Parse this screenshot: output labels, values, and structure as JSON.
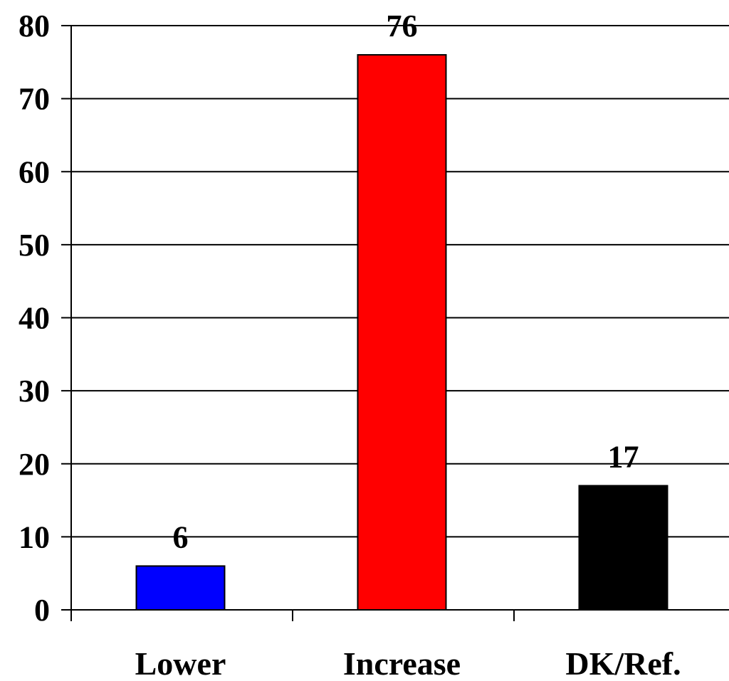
{
  "chart_data": {
    "type": "bar",
    "title": "",
    "xlabel": "",
    "ylabel": "",
    "categories": [
      "Lower",
      "Increase",
      "DK/Ref."
    ],
    "values": [
      6,
      76,
      17
    ],
    "data_labels": [
      "6",
      "76",
      "17"
    ],
    "colors": [
      "#0000ff",
      "#ff0000",
      "#000000"
    ],
    "ylim": [
      0,
      80
    ],
    "yticks": [
      0,
      10,
      20,
      30,
      40,
      50,
      60,
      70,
      80
    ],
    "grid": true,
    "legend": "none"
  }
}
